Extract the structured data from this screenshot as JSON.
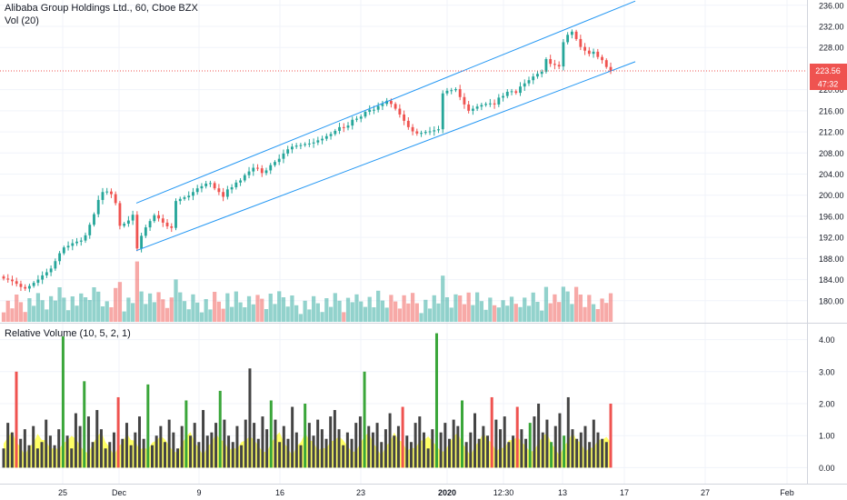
{
  "header": {
    "title": "Alibaba Group Holdings Ltd., 60, Cboe BZX",
    "vol_label": "Vol (20)",
    "rv_label": "Relative Volume (10, 5, 2, 1)"
  },
  "price_badge": "223.56",
  "countdown_badge": "47:32",
  "colors": {
    "up": "#26a69a",
    "down": "#ef5350",
    "channel": "#2196f3",
    "last_price": "#ef5350",
    "rv_dark": "#444444",
    "rv_green": "#3aa63a",
    "rv_red": "#ef5350",
    "rv_fill": "#ffff33"
  },
  "chart_data": [
    {
      "type": "candlestick",
      "ylim": [
        176,
        237
      ],
      "yticks": [
        "180.00",
        "184.00",
        "188.00",
        "192.00",
        "196.00",
        "200.00",
        "204.00",
        "208.00",
        "212.00",
        "216.00",
        "220.00",
        "228.00",
        "232.00",
        "236.00"
      ],
      "xticks": [
        "25",
        "Dec",
        "9",
        "16",
        "23",
        "2020",
        "12:30",
        "13",
        "17",
        "27",
        "Feb"
      ],
      "last_price": 223.56,
      "closes": [
        184.2,
        184.0,
        183.7,
        183.2,
        182.6,
        182.3,
        182.8,
        183.4,
        184.0,
        184.8,
        185.4,
        186.1,
        187.5,
        189.0,
        190.1,
        190.4,
        190.9,
        191.2,
        191.4,
        192.4,
        194.4,
        196.4,
        199.1,
        200.6,
        200.7,
        200.2,
        198.5,
        194.2,
        194.6,
        195.2,
        196.3,
        189.9,
        192.3,
        193.9,
        195.1,
        196.2,
        195.6,
        194.8,
        194.1,
        193.8,
        198.9,
        199.3,
        199.6,
        199.9,
        200.6,
        201.3,
        201.7,
        202.2,
        202.3,
        201.3,
        200.6,
        199.7,
        201.1,
        201.5,
        202.4,
        202.8,
        203.8,
        204.5,
        205.2,
        205.1,
        204.2,
        204.7,
        205.7,
        206.3,
        206.9,
        207.9,
        208.7,
        209.2,
        209.4,
        209.5,
        209.7,
        209.8,
        210.0,
        210.4,
        210.7,
        211.2,
        211.6,
        212.2,
        212.9,
        212.8,
        213.2,
        214.3,
        214.5,
        214.9,
        215.8,
        216.2,
        216.2,
        216.9,
        217.3,
        217.9,
        217.3,
        216.4,
        215.3,
        214.1,
        212.9,
        212.1,
        211.7,
        211.8,
        212.0,
        212.1,
        212.3,
        212.5,
        219.3,
        219.8,
        219.9,
        220.1,
        218.6,
        217.2,
        216.0,
        216.4,
        216.8,
        217.1,
        217.3,
        217.4,
        217.2,
        218.5,
        218.8,
        219.6,
        219.7,
        219.4,
        220.6,
        221.2,
        221.8,
        222.5,
        223.0,
        223.4,
        225.8,
        224.9,
        224.7,
        224.4,
        229.0,
        230.4,
        231.0,
        229.6,
        228.1,
        227.4,
        226.8,
        227.2,
        226.2,
        225.6,
        224.3,
        223.56
      ],
      "rv_values": [
        0.6,
        1.4,
        1.1,
        3.0,
        0.9,
        1.2,
        0.7,
        1.3,
        0.6,
        0.8,
        1.5,
        1.0,
        0.7,
        1.2,
        4.1,
        1.0,
        0.6,
        1.7,
        1.3,
        2.7,
        1.6,
        0.8,
        1.8,
        1.2,
        0.6,
        0.8,
        1.1,
        2.2,
        0.9,
        1.4,
        0.7,
        1.1,
        1.6,
        0.9,
        2.6,
        0.7,
        1.0,
        1.3,
        0.8,
        1.5,
        1.1,
        0.6,
        1.3,
        2.1,
        1.0,
        1.4,
        0.8,
        1.8,
        1.0,
        1.1,
        1.4,
        2.4,
        1.5,
        1.0,
        0.8,
        1.3,
        0.7,
        1.5,
        3.1,
        1.4,
        0.9,
        1.6,
        1.2,
        2.1,
        1.5,
        0.8,
        1.3,
        0.9,
        1.9,
        1.1,
        0.7,
        2.0,
        1.4,
        1.0,
        1.5,
        1.2,
        0.9,
        1.6,
        1.8,
        1.2,
        0.7,
        1.1,
        0.9,
        1.4,
        1.6,
        3.0,
        1.3,
        1.1,
        1.4,
        0.8,
        1.2,
        1.7,
        1.0,
        1.3,
        1.9,
        1.0,
        0.8,
        1.4,
        1.6,
        1.1,
        0.6,
        1.2,
        4.2,
        1.1,
        1.4,
        0.9,
        1.5,
        1.3,
        2.1,
        0.8,
        1.1,
        1.7,
        0.9,
        1.3,
        1.0,
        2.2,
        1.5,
        1.2,
        1.6,
        0.8,
        1.0,
        1.9,
        1.2,
        0.9,
        1.4,
        1.6,
        2.0,
        1.1,
        1.5,
        0.8,
        1.3,
        1.7,
        1.0,
        2.2,
        1.2,
        0.9,
        1.1,
        1.3,
        0.8,
        1.5,
        1.1,
        0.9,
        0.8,
        2.0
      ],
      "rv_colors": [
        "d",
        "d",
        "d",
        "r",
        "d",
        "d",
        "d",
        "d",
        "d",
        "d",
        "d",
        "d",
        "d",
        "d",
        "g",
        "d",
        "d",
        "d",
        "d",
        "g",
        "d",
        "d",
        "d",
        "d",
        "d",
        "d",
        "d",
        "r",
        "d",
        "d",
        "d",
        "d",
        "d",
        "d",
        "g",
        "d",
        "d",
        "d",
        "d",
        "d",
        "d",
        "d",
        "d",
        "g",
        "d",
        "d",
        "d",
        "d",
        "d",
        "d",
        "d",
        "g",
        "d",
        "d",
        "d",
        "d",
        "d",
        "d",
        "d",
        "d",
        "d",
        "d",
        "d",
        "g",
        "d",
        "d",
        "d",
        "d",
        "d",
        "d",
        "d",
        "g",
        "d",
        "d",
        "d",
        "d",
        "d",
        "d",
        "d",
        "d",
        "d",
        "d",
        "d",
        "d",
        "d",
        "g",
        "d",
        "d",
        "d",
        "d",
        "d",
        "d",
        "d",
        "d",
        "r",
        "d",
        "d",
        "d",
        "d",
        "d",
        "d",
        "d",
        "g",
        "d",
        "d",
        "d",
        "d",
        "d",
        "g",
        "d",
        "d",
        "d",
        "d",
        "d",
        "d",
        "r",
        "d",
        "d",
        "d",
        "d",
        "d",
        "r",
        "d",
        "d",
        "g",
        "d",
        "d",
        "d",
        "d",
        "g",
        "d",
        "d",
        "g",
        "d",
        "d",
        "d",
        "d",
        "d",
        "d",
        "d",
        "d",
        "d",
        "d",
        "r"
      ],
      "rv_yticks": [
        "0.00",
        "1.00",
        "2.00",
        "3.00",
        "4.00"
      ],
      "rv_ylim": [
        -0.5,
        4.5
      ]
    }
  ]
}
